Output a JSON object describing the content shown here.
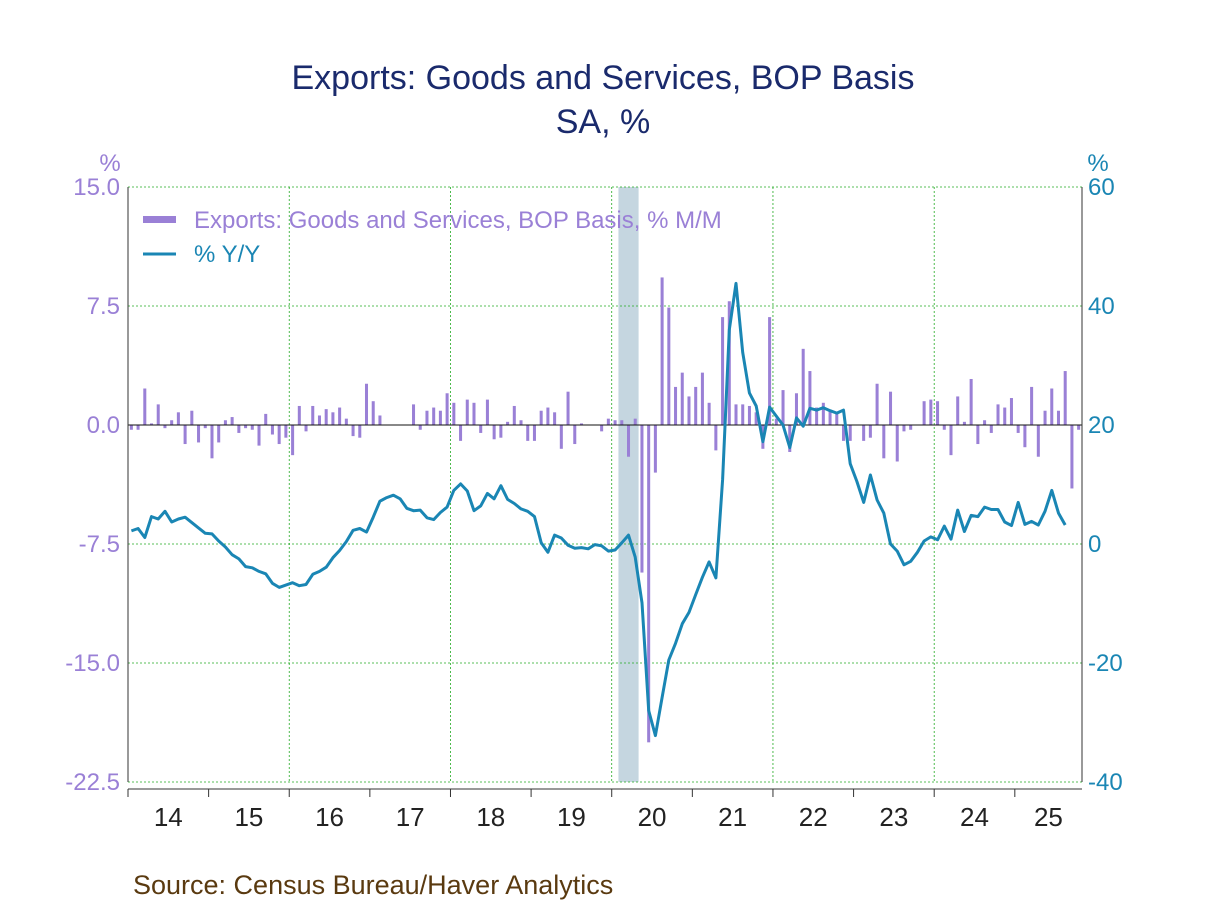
{
  "chart_data": {
    "type": "bar+line",
    "title": "Exports: Goods and Services, BOP Basis",
    "subtitle": "SA, %",
    "left_axis": {
      "unit": "%",
      "ylim": [
        -22.5,
        15.0
      ],
      "ticks": [
        "15.0",
        "7.5",
        "0.0",
        "-7.5",
        "-15.0",
        "-22.5"
      ],
      "tick_values": [
        15.0,
        7.5,
        0.0,
        -7.5,
        -15.0,
        -22.5
      ]
    },
    "right_axis": {
      "unit": "%",
      "ylim": [
        -40,
        60
      ],
      "ticks": [
        "60",
        "40",
        "20",
        "0",
        "-20",
        "-40"
      ],
      "tick_values": [
        60,
        40,
        20,
        0,
        -20,
        -40
      ]
    },
    "x_axis": {
      "labels": [
        "14",
        "15",
        "16",
        "17",
        "18",
        "19",
        "20",
        "21",
        "22",
        "23",
        "24",
        "25"
      ],
      "start": "2014-01",
      "end": "2025-05"
    },
    "grid": true,
    "legend_position": "top-left",
    "recession_shading": {
      "start": "2020-02",
      "end": "2020-04"
    },
    "series": [
      {
        "name": "Exports: Goods and Services, BOP Basis, % M/M",
        "type": "bar",
        "axis": "left",
        "color": "#9a80d6",
        "values": [
          -0.3,
          -0.3,
          2.3,
          0.1,
          1.3,
          -0.2,
          0.3,
          0.8,
          -1.2,
          0.9,
          -1.1,
          -0.2,
          -2.1,
          -1.1,
          0.3,
          0.5,
          -0.5,
          -0.2,
          -0.3,
          -1.3,
          0.7,
          -0.6,
          -1.2,
          -0.8,
          -1.9,
          1.2,
          -0.4,
          1.2,
          0.6,
          1.0,
          0.8,
          1.1,
          0.4,
          -0.7,
          -0.8,
          2.6,
          1.5,
          0.6,
          0.0,
          0.0,
          0.0,
          0.0,
          1.3,
          -0.3,
          0.9,
          1.1,
          0.9,
          2.0,
          1.4,
          -1.0,
          1.6,
          1.4,
          -0.5,
          1.6,
          -0.9,
          -0.8,
          0.2,
          1.2,
          0.3,
          -1.0,
          -1.0,
          0.9,
          1.1,
          0.8,
          -1.5,
          2.1,
          -1.2,
          0.1,
          0.0,
          0.0,
          -0.4,
          0.4,
          0.3,
          0.3,
          -2.0,
          0.4,
          -9.3,
          -20.0,
          -3.0,
          9.3,
          7.4,
          2.4,
          3.3,
          1.8,
          2.4,
          3.3,
          1.4,
          -1.6,
          6.8,
          7.8,
          1.3,
          1.3,
          1.2,
          0.8,
          -1.5,
          6.8,
          0.4,
          2.2,
          -1.7,
          2.0,
          4.8,
          3.4,
          1.1,
          1.4,
          0.9,
          0.8,
          -1.0,
          -1.0,
          0.0,
          -1.0,
          -0.8,
          2.6,
          -2.1,
          2.1,
          -2.3,
          -0.4,
          -0.3,
          0.0,
          1.5,
          1.6,
          1.5,
          -0.3,
          -1.9,
          1.8,
          0.2,
          2.9,
          -1.2,
          0.3,
          -0.5,
          1.3,
          1.1,
          1.7,
          -0.5,
          -1.4,
          2.4,
          -2.0,
          0.9,
          2.3,
          0.9,
          3.4,
          -4.0,
          -0.3
        ]
      },
      {
        "name": "% Y/Y",
        "type": "line",
        "axis": "right",
        "color": "#1a86b4",
        "values": [
          2.2,
          2.6,
          1.1,
          4.6,
          4.2,
          5.5,
          3.7,
          4.2,
          4.5,
          3.6,
          2.7,
          1.8,
          1.7,
          0.5,
          -0.5,
          -1.8,
          -2.5,
          -3.8,
          -4.0,
          -4.6,
          -5.0,
          -6.6,
          -7.3,
          -6.9,
          -6.5,
          -7.0,
          -6.8,
          -5.1,
          -4.6,
          -3.9,
          -2.3,
          -1.1,
          0.4,
          2.3,
          2.6,
          2.0,
          4.5,
          7.2,
          7.8,
          8.2,
          7.6,
          6.0,
          5.6,
          5.7,
          4.4,
          4.1,
          5.3,
          6.2,
          9.0,
          10.1,
          8.9,
          5.6,
          6.4,
          8.5,
          7.6,
          9.8,
          7.5,
          6.8,
          5.9,
          5.5,
          4.6,
          0.2,
          -1.4,
          1.5,
          1.0,
          -0.2,
          -0.7,
          -0.6,
          -0.8,
          -0.1,
          -0.3,
          -1.2,
          -1.0,
          0.2,
          1.5,
          -2.2,
          -9.9,
          -28.0,
          -32.2,
          -25.8,
          -19.5,
          -16.7,
          -13.4,
          -11.5,
          -8.5,
          -5.6,
          -3.0,
          -5.7,
          10.8,
          36.0,
          43.8,
          32.2,
          25.4,
          23.2,
          17.2,
          23.0,
          21.5,
          20.0,
          16.2,
          21.2,
          19.8,
          22.8,
          22.5,
          22.9,
          22.4,
          22.0,
          22.5,
          13.5,
          10.5,
          7.0,
          11.6,
          7.4,
          5.2,
          0.0,
          -1.2,
          -3.5,
          -2.9,
          -1.4,
          0.5,
          1.2,
          0.7,
          3.0,
          0.8,
          5.7,
          2.1,
          4.8,
          4.6,
          6.2,
          5.8,
          5.8,
          3.7,
          3.1,
          7.0,
          3.3,
          3.8,
          3.2,
          5.5,
          9.0,
          5.2,
          3.2
        ]
      }
    ],
    "source_text": "Source:  Census Bureau/Haver Analytics"
  },
  "colors": {
    "title": "#1a2a6c",
    "left": "#9a80d6",
    "right": "#1a86b4",
    "grid": "#22aa22",
    "shade": "#c5d6e0",
    "source": "#5a3a10"
  }
}
